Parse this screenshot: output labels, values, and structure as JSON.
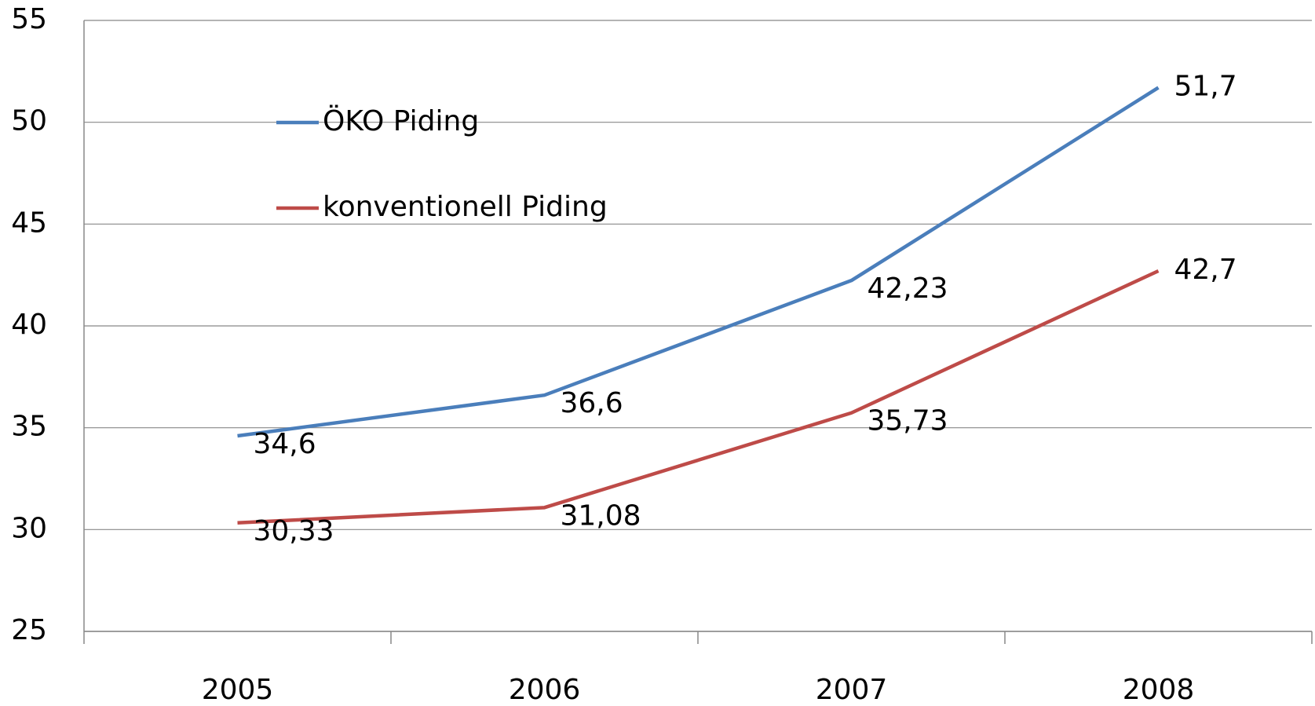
{
  "chart_data": {
    "type": "line",
    "categories": [
      "2005",
      "2006",
      "2007",
      "2008"
    ],
    "series": [
      {
        "name": "ÖKO Piding",
        "color": "#4a7ebb",
        "values": [
          34.6,
          36.6,
          42.23,
          51.7
        ],
        "value_labels": [
          "34,6",
          "36,6",
          "42,23",
          "51,7"
        ]
      },
      {
        "name": "konventionell Piding",
        "color": "#be4b48",
        "values": [
          30.33,
          31.08,
          35.73,
          42.7
        ],
        "value_labels": [
          "30,33",
          "31,08",
          "35,73",
          "42,7"
        ]
      }
    ],
    "ylim": [
      25,
      55
    ],
    "yticks": [
      25,
      30,
      35,
      40,
      45,
      50,
      55
    ],
    "grid": true,
    "legend": "upper left"
  }
}
